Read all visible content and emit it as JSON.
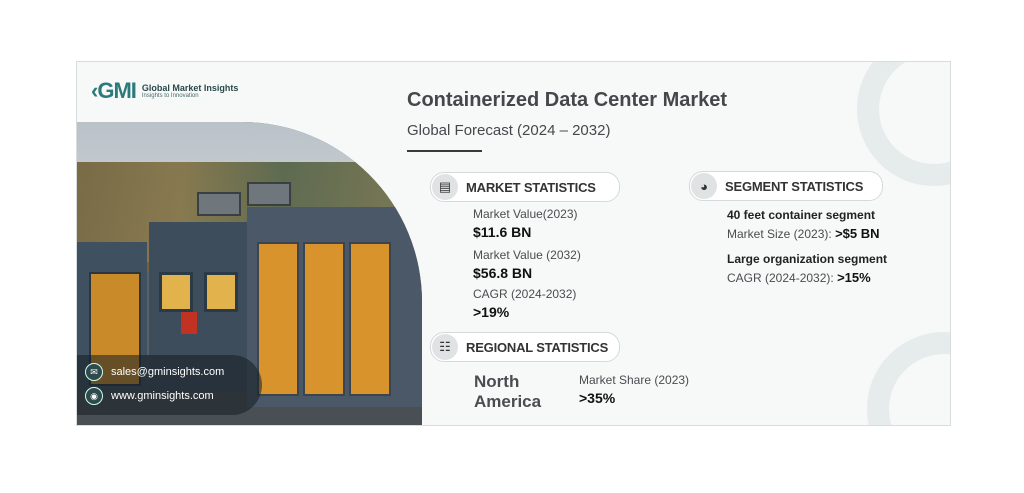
{
  "logo": {
    "mark": "‹GMI",
    "name": "Global Market Insights",
    "tagline": "Insights to Innovation"
  },
  "header": {
    "title": "Containerized Data Center Market",
    "subtitle": "Global Forecast (2024 – 2032)"
  },
  "market": {
    "heading": "MARKET STATISTICS",
    "value_2023_label": "Market Value(2023)",
    "value_2023": "$11.6 BN",
    "value_2032_label": "Market Value (2032)",
    "value_2032": "$56.8 BN",
    "cagr_label": "CAGR (2024-2032)",
    "cagr": ">19%"
  },
  "segment": {
    "heading": "SEGMENT STATISTICS",
    "seg1_name": "40 feet container segment",
    "seg1_metric": "Market Size (2023):",
    "seg1_value": ">$5 BN",
    "seg2_name": "Large organization segment",
    "seg2_metric": "CAGR (2024-2032):",
    "seg2_value": ">15%"
  },
  "regional": {
    "heading": "REGIONAL STATISTICS",
    "region_line1": "North",
    "region_line2": "America",
    "share_label": "Market Share (2023)",
    "share_value": ">35%"
  },
  "contact": {
    "email": "sales@gminsights.com",
    "website": "www.gminsights.com"
  },
  "colors": {
    "accent": "#2c7a7b",
    "text": "#45484b",
    "door": "#d8932c"
  }
}
